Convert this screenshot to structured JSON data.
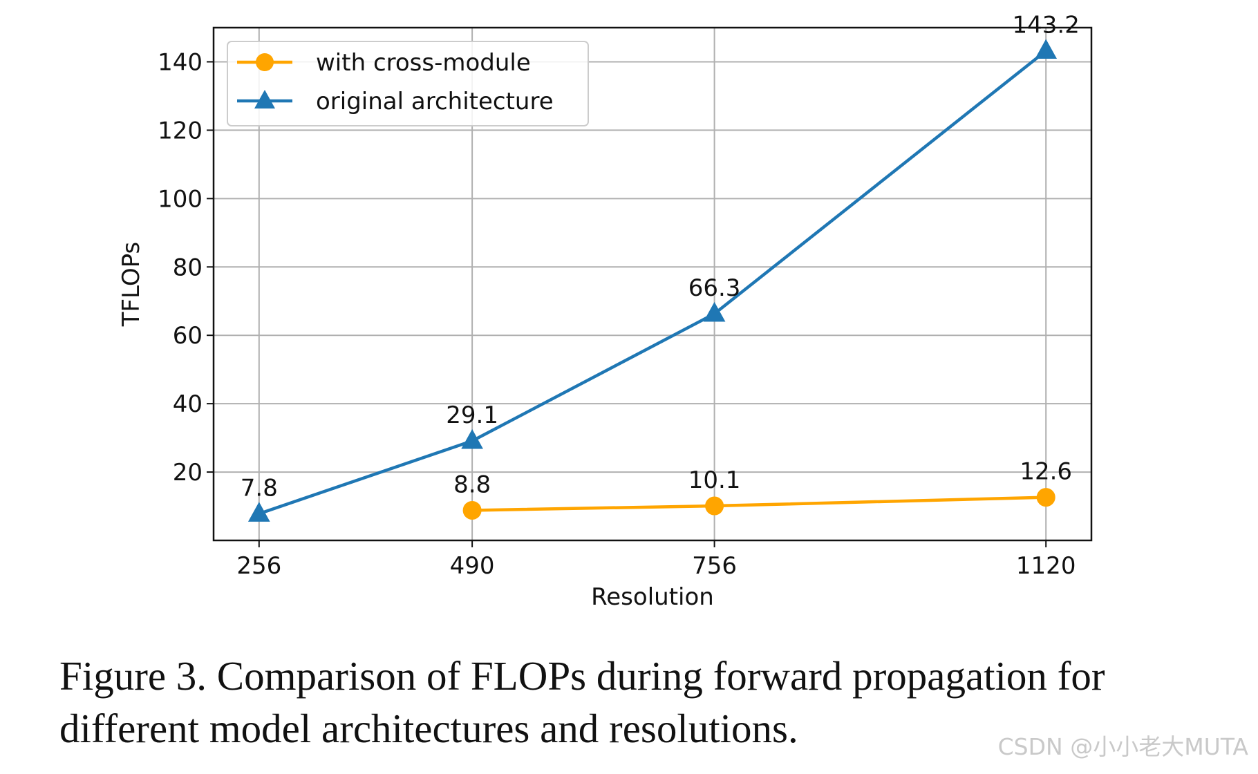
{
  "chart_data": {
    "type": "line",
    "x": [
      "256",
      "490",
      "756",
      "1120"
    ],
    "xlabel": "Resolution",
    "ylabel": "TFLOPs",
    "ylim": [
      0,
      150
    ],
    "yticks": [
      20,
      40,
      60,
      80,
      100,
      120,
      140
    ],
    "grid": true,
    "legend_position": "top-left",
    "series": [
      {
        "name": "with cross-module",
        "marker": "circle",
        "color": "#FFA500",
        "points": [
          {
            "x": "490",
            "y": 8.8,
            "label": "8.8"
          },
          {
            "x": "756",
            "y": 10.1,
            "label": "10.1"
          },
          {
            "x": "1120",
            "y": 12.6,
            "label": "12.6"
          }
        ]
      },
      {
        "name": "original architecture",
        "marker": "triangle",
        "color": "#1F77B4",
        "points": [
          {
            "x": "256",
            "y": 7.8,
            "label": "7.8"
          },
          {
            "x": "490",
            "y": 29.1,
            "label": "29.1"
          },
          {
            "x": "756",
            "y": 66.3,
            "label": "66.3"
          },
          {
            "x": "1120",
            "y": 143.2,
            "label": "143.2"
          }
        ]
      }
    ]
  },
  "caption": {
    "line1": "Figure 3.  Comparison of FLOPs during forward propagation for",
    "line2": "different model architectures and resolutions."
  },
  "watermark": "CSDN @小小老大MUTA"
}
